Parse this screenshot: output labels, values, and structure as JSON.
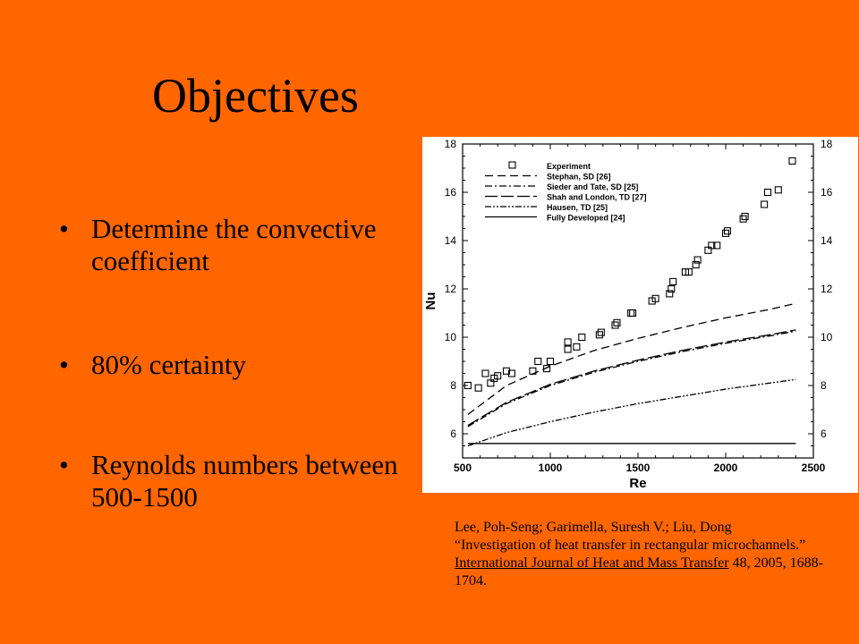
{
  "slide": {
    "title": "Objectives",
    "bullets": [
      "Determine the convective coefficient",
      "80% certainty",
      "Reynolds numbers between 500-1500"
    ],
    "citation": {
      "authors": "Lee, Poh-Seng; Garimella, Suresh V.; Liu, Dong",
      "article": "“Investigation of heat transfer in rectangular microchannels.”",
      "journal": "International Journal of Heat and Mass Transfer",
      "rest": "48, 2005, 1688-1704."
    }
  },
  "colors": {
    "background": "#FF6600",
    "chart_bg": "#FFFFFF",
    "ink": "#000000"
  },
  "chart_data": {
    "type": "line",
    "xlabel": "Re",
    "ylabel": "Nu",
    "xlim": [
      500,
      2500
    ],
    "ylim": [
      5,
      18
    ],
    "x_ticks": [
      500,
      1000,
      1500,
      2000,
      2500
    ],
    "y_ticks": [
      6,
      8,
      10,
      12,
      14,
      16,
      18
    ],
    "grid": false,
    "legend_position": "top-left",
    "series": [
      {
        "name": "Experiment",
        "style": "markers",
        "marker": "square",
        "x": [
          530,
          590,
          630,
          660,
          680,
          700,
          750,
          780,
          900,
          930,
          980,
          1000,
          1100,
          1100,
          1150,
          1180,
          1280,
          1290,
          1370,
          1380,
          1460,
          1470,
          1580,
          1600,
          1680,
          1690,
          1700,
          1770,
          1790,
          1830,
          1840,
          1900,
          1920,
          1950,
          2000,
          2010,
          2100,
          2110,
          2220,
          2240,
          2300,
          2380
        ],
        "y": [
          8.0,
          7.9,
          8.5,
          8.1,
          8.3,
          8.4,
          8.6,
          8.5,
          8.6,
          9.0,
          8.7,
          9.0,
          9.5,
          9.8,
          9.6,
          10.0,
          10.1,
          10.2,
          10.5,
          10.6,
          11.0,
          11.0,
          11.5,
          11.6,
          11.8,
          12.0,
          12.3,
          12.7,
          12.7,
          13.0,
          13.2,
          13.6,
          13.8,
          13.8,
          14.3,
          14.4,
          14.9,
          15.0,
          15.5,
          16.0,
          16.1,
          17.3
        ]
      },
      {
        "name": "Stephan, SD [26]",
        "style": "dashed",
        "x": [
          530,
          750,
          1000,
          1250,
          1500,
          1750,
          2000,
          2250,
          2400
        ],
        "y": [
          6.8,
          8.0,
          8.8,
          9.45,
          9.95,
          10.4,
          10.8,
          11.15,
          11.4
        ]
      },
      {
        "name": "Sieder and Tate, SD [25]",
        "style": "dashdot",
        "x": [
          530,
          750,
          1000,
          1250,
          1500,
          1750,
          2000,
          2250,
          2400
        ],
        "y": [
          6.3,
          7.25,
          8.0,
          8.55,
          9.0,
          9.4,
          9.75,
          10.05,
          10.25
        ]
      },
      {
        "name": "Shah and London, TD [27]",
        "style": "longdash",
        "x": [
          530,
          750,
          1000,
          1250,
          1500,
          1750,
          2000,
          2250,
          2400
        ],
        "y": [
          6.35,
          7.3,
          8.05,
          8.6,
          9.05,
          9.45,
          9.8,
          10.1,
          10.3
        ]
      },
      {
        "name": "Hausen, TD [25]",
        "style": "dashdotdot",
        "x": [
          530,
          750,
          1000,
          1250,
          1500,
          1750,
          2000,
          2250,
          2400
        ],
        "y": [
          5.5,
          6.05,
          6.5,
          6.9,
          7.25,
          7.55,
          7.85,
          8.1,
          8.25
        ]
      },
      {
        "name": "Fully Developed [24]",
        "style": "solid",
        "x": [
          530,
          2400
        ],
        "y": [
          5.6,
          5.6
        ]
      }
    ]
  }
}
